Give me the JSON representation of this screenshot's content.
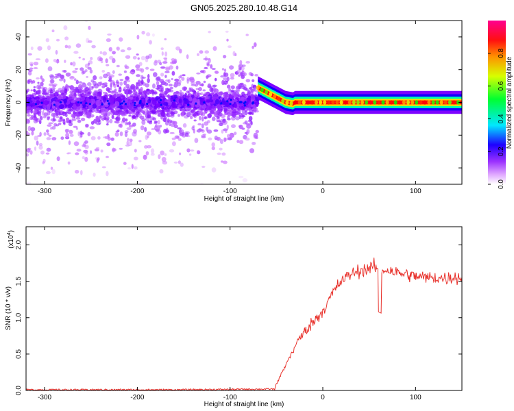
{
  "title": "GN05.2025.280.10.48.G14",
  "chart_data": [
    {
      "type": "heatmap",
      "xlabel": "Height of straight line (km)",
      "ylabel": "Frequency (Hz)",
      "xlim": [
        -320,
        150
      ],
      "ylim": [
        -50,
        50
      ],
      "xticks": [
        -300,
        -200,
        -100,
        0,
        100
      ],
      "yticks": [
        -40,
        -20,
        0,
        20,
        40
      ],
      "grid": false,
      "colorbar": {
        "label": "Normalized spectral amplitude",
        "range": [
          0,
          1
        ],
        "ticks": [
          "0.0",
          "0.2",
          "0.4",
          "0.6",
          "0.8"
        ],
        "colors": [
          "#ffffff",
          "#d080ff",
          "#7a00ff",
          "#0000ff",
          "#00ffff",
          "#00ff00",
          "#ffff00",
          "#ff8000",
          "#ff0000",
          "#ff0080"
        ]
      },
      "regions": [
        {
          "x_range": [
            -320,
            -70
          ],
          "frequency_center": 0,
          "amplitude": "low, noisy"
        },
        {
          "x_range": [
            -70,
            -30
          ],
          "frequency_track": [
            [
              -70,
              9
            ],
            [
              -60,
              6
            ],
            [
              -50,
              3
            ],
            [
              -40,
              0
            ],
            [
              -30,
              -1
            ]
          ],
          "amplitude": "rising"
        },
        {
          "x_range": [
            -30,
            150
          ],
          "frequency_center": 0,
          "amplitude": "high"
        }
      ]
    },
    {
      "type": "line",
      "xlabel": "Height of straight line (km)",
      "ylabel": "SNR (10 * v/v)",
      "yscale_label": "(x10",
      "yscale_exp": "4",
      "xlim": [
        -320,
        150
      ],
      "ylim": [
        0,
        2.25
      ],
      "xticks": [
        -300,
        -200,
        -100,
        0,
        100
      ],
      "yticks": [
        "0.0",
        "0.5",
        "1.0",
        "1.5",
        "2.0"
      ],
      "grid": false,
      "series": [
        {
          "color": "#e8302a",
          "x": [
            -320,
            -250,
            -150,
            -52,
            -45,
            -40,
            -35,
            -30,
            -25,
            -20,
            -15,
            -10,
            -5,
            0,
            5,
            10,
            15,
            20,
            25,
            30,
            35,
            40,
            45,
            50,
            55,
            60,
            65,
            70,
            75,
            80,
            85,
            90,
            95,
            100,
            105,
            110,
            115,
            120,
            125,
            130,
            135,
            140,
            145,
            150
          ],
          "y": [
            0.01,
            0.01,
            0.01,
            0.02,
            0.22,
            0.35,
            0.48,
            0.6,
            0.72,
            0.8,
            0.88,
            0.95,
            1.02,
            1.1,
            1.2,
            1.32,
            1.42,
            1.5,
            1.55,
            1.6,
            1.62,
            1.65,
            1.66,
            1.68,
            1.7,
            1.68,
            1.65,
            1.66,
            1.64,
            1.62,
            1.6,
            1.6,
            1.58,
            1.57,
            1.56,
            1.55,
            1.55,
            1.55,
            1.55,
            1.54,
            1.54,
            1.56,
            1.55,
            1.55
          ]
        }
      ]
    }
  ]
}
